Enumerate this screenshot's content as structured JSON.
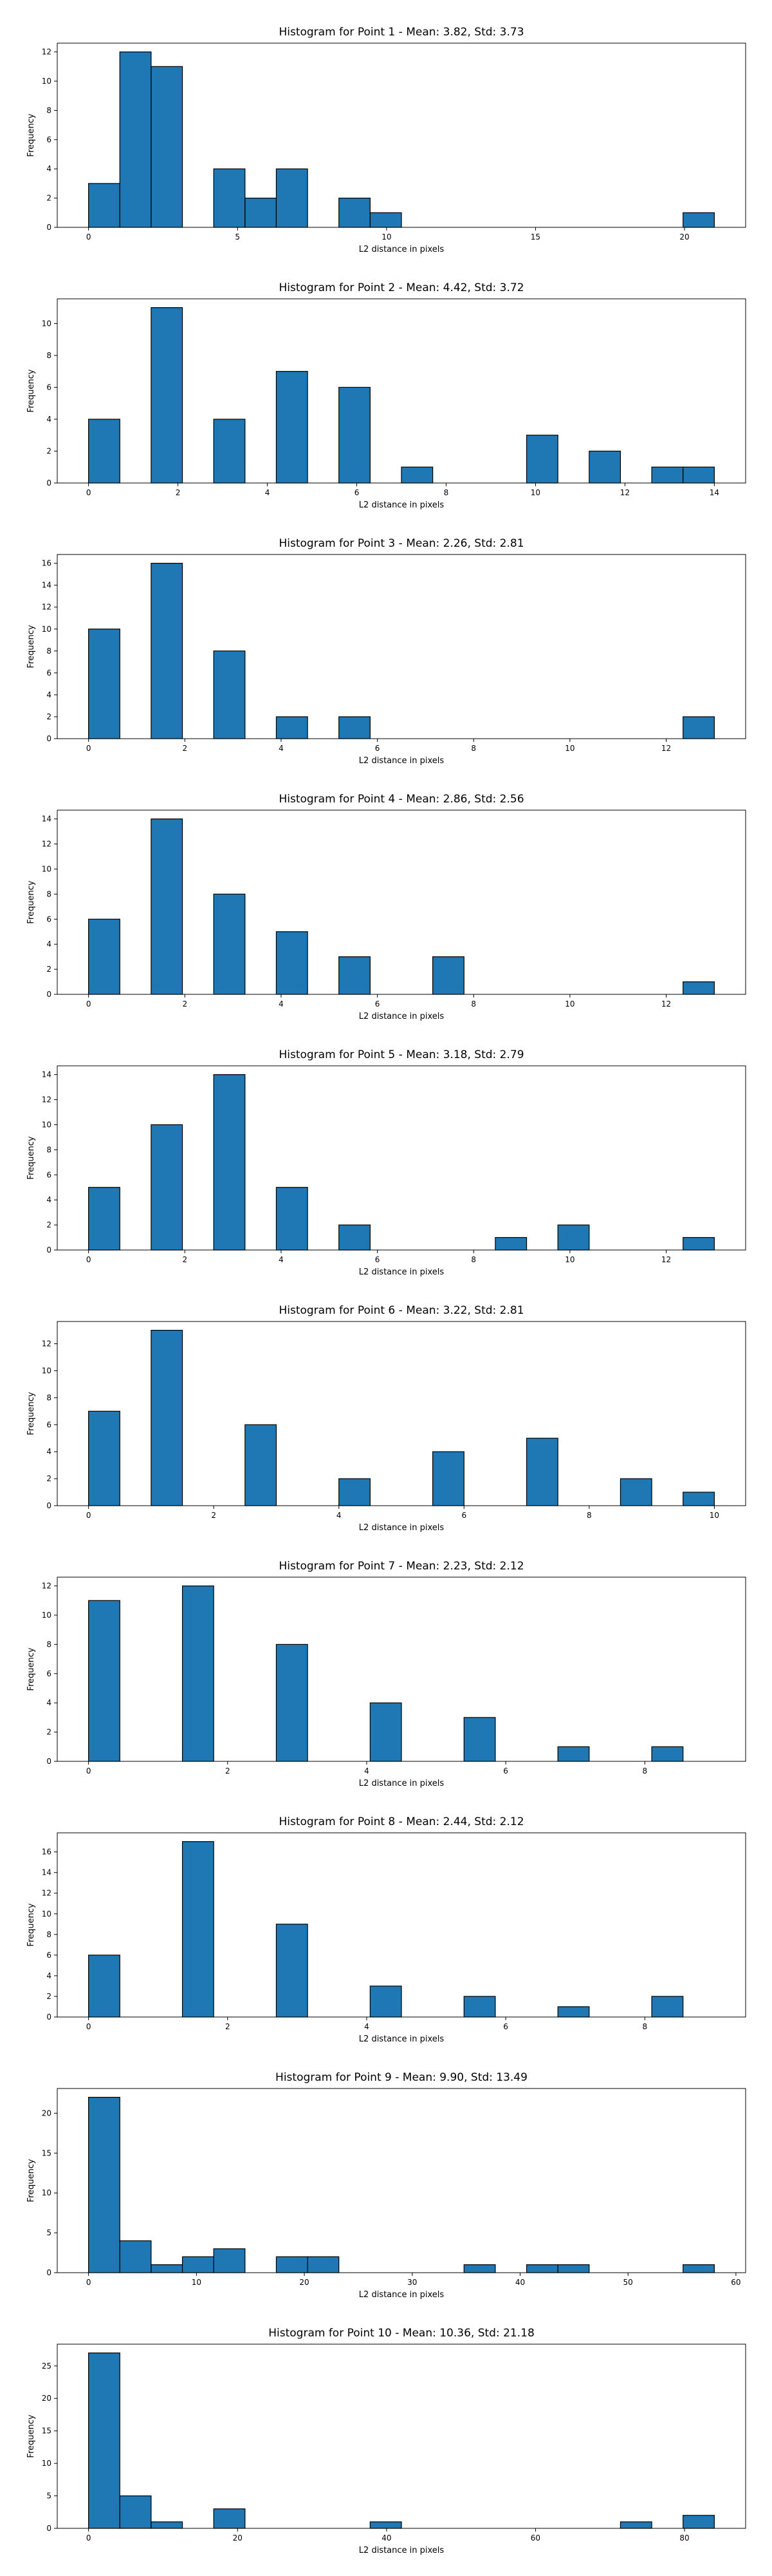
{
  "style": {
    "bar_color": "#1f77b4",
    "edge_color": "#000000"
  },
  "chart_data": [
    {
      "type": "bar",
      "title": "Histogram for Point 1 - Mean: 3.82, Std: 3.73",
      "xlabel": "L2 distance in pixels",
      "ylabel": "Frequency",
      "xlim": [
        -1.05,
        22.05
      ],
      "ylim": [
        0,
        12.6
      ],
      "xticks": [
        0,
        5,
        10,
        15,
        20
      ],
      "yticks": [
        0,
        2,
        4,
        6,
        8,
        10,
        12
      ],
      "bin_width": 1.05,
      "bins": [
        {
          "x0": 0.0,
          "count": 3
        },
        {
          "x0": 1.05,
          "count": 12
        },
        {
          "x0": 2.1,
          "count": 11
        },
        {
          "x0": 4.2,
          "count": 4
        },
        {
          "x0": 5.25,
          "count": 2
        },
        {
          "x0": 6.3,
          "count": 4
        },
        {
          "x0": 8.4,
          "count": 2
        },
        {
          "x0": 9.45,
          "count": 1
        },
        {
          "x0": 19.95,
          "count": 1
        }
      ]
    },
    {
      "type": "bar",
      "title": "Histogram for Point 2 - Mean: 4.42, Std: 3.72",
      "xlabel": "L2 distance in pixels",
      "ylabel": "Frequency",
      "xlim": [
        -0.7,
        14.7
      ],
      "ylim": [
        0,
        11.55
      ],
      "xticks": [
        0,
        2,
        4,
        6,
        8,
        10,
        12,
        14
      ],
      "yticks": [
        0,
        2,
        4,
        6,
        8,
        10
      ],
      "bin_width": 0.7,
      "bins": [
        {
          "x0": 0.0,
          "count": 4
        },
        {
          "x0": 1.4,
          "count": 11
        },
        {
          "x0": 2.8,
          "count": 4
        },
        {
          "x0": 4.2,
          "count": 7
        },
        {
          "x0": 5.6,
          "count": 6
        },
        {
          "x0": 7.0,
          "count": 1
        },
        {
          "x0": 9.8,
          "count": 3
        },
        {
          "x0": 11.2,
          "count": 2
        },
        {
          "x0": 12.6,
          "count": 1
        },
        {
          "x0": 13.3,
          "count": 1
        }
      ]
    },
    {
      "type": "bar",
      "title": "Histogram for Point 3 - Mean: 2.26, Std: 2.81",
      "xlabel": "L2 distance in pixels",
      "ylabel": "Frequency",
      "xlim": [
        -0.65,
        13.65
      ],
      "ylim": [
        0,
        16.8
      ],
      "xticks": [
        0,
        2,
        4,
        6,
        8,
        10,
        12
      ],
      "yticks": [
        0,
        2,
        4,
        6,
        8,
        10,
        12,
        14,
        16
      ],
      "bin_width": 0.65,
      "bins": [
        {
          "x0": 0.0,
          "count": 10
        },
        {
          "x0": 1.3,
          "count": 16
        },
        {
          "x0": 2.6,
          "count": 8
        },
        {
          "x0": 3.9,
          "count": 2
        },
        {
          "x0": 5.2,
          "count": 2
        },
        {
          "x0": 12.35,
          "count": 2
        }
      ]
    },
    {
      "type": "bar",
      "title": "Histogram for Point 4 - Mean: 2.86, Std: 2.56",
      "xlabel": "L2 distance in pixels",
      "ylabel": "Frequency",
      "xlim": [
        -0.65,
        13.65
      ],
      "ylim": [
        0,
        14.7
      ],
      "xticks": [
        0,
        2,
        4,
        6,
        8,
        10,
        12
      ],
      "yticks": [
        0,
        2,
        4,
        6,
        8,
        10,
        12,
        14
      ],
      "bin_width": 0.65,
      "bins": [
        {
          "x0": 0.0,
          "count": 6
        },
        {
          "x0": 1.3,
          "count": 14
        },
        {
          "x0": 2.6,
          "count": 8
        },
        {
          "x0": 3.9,
          "count": 5
        },
        {
          "x0": 5.2,
          "count": 3
        },
        {
          "x0": 7.15,
          "count": 3
        },
        {
          "x0": 12.35,
          "count": 1
        }
      ]
    },
    {
      "type": "bar",
      "title": "Histogram for Point 5 - Mean: 3.18, Std: 2.79",
      "xlabel": "L2 distance in pixels",
      "ylabel": "Frequency",
      "xlim": [
        -0.65,
        13.65
      ],
      "ylim": [
        0,
        14.7
      ],
      "xticks": [
        0,
        2,
        4,
        6,
        8,
        10,
        12
      ],
      "yticks": [
        0,
        2,
        4,
        6,
        8,
        10,
        12,
        14
      ],
      "bin_width": 0.65,
      "bins": [
        {
          "x0": 0.0,
          "count": 5
        },
        {
          "x0": 1.3,
          "count": 10
        },
        {
          "x0": 2.6,
          "count": 14
        },
        {
          "x0": 3.9,
          "count": 5
        },
        {
          "x0": 5.2,
          "count": 2
        },
        {
          "x0": 8.45,
          "count": 1
        },
        {
          "x0": 9.75,
          "count": 2
        },
        {
          "x0": 12.35,
          "count": 1
        }
      ]
    },
    {
      "type": "bar",
      "title": "Histogram for Point 6 - Mean: 3.22, Std: 2.81",
      "xlabel": "L2 distance in pixels",
      "ylabel": "Frequency",
      "xlim": [
        -0.5,
        10.5
      ],
      "ylim": [
        0,
        13.65
      ],
      "xticks": [
        0,
        2,
        4,
        6,
        8,
        10
      ],
      "yticks": [
        0,
        2,
        4,
        6,
        8,
        10,
        12
      ],
      "bin_width": 0.5,
      "bins": [
        {
          "x0": 0.0,
          "count": 7
        },
        {
          "x0": 1.0,
          "count": 13
        },
        {
          "x0": 2.5,
          "count": 6
        },
        {
          "x0": 4.0,
          "count": 2
        },
        {
          "x0": 5.5,
          "count": 4
        },
        {
          "x0": 7.0,
          "count": 5
        },
        {
          "x0": 8.5,
          "count": 2
        },
        {
          "x0": 9.5,
          "count": 1
        }
      ]
    },
    {
      "type": "bar",
      "title": "Histogram for Point 7 - Mean: 2.23, Std: 2.12",
      "xlabel": "L2 distance in pixels",
      "ylabel": "Frequency",
      "xlim": [
        -0.45,
        9.45
      ],
      "ylim": [
        0,
        12.6
      ],
      "xticks": [
        0,
        2,
        4,
        6,
        8
      ],
      "yticks": [
        0,
        2,
        4,
        6,
        8,
        10,
        12
      ],
      "bin_width": 0.45,
      "bins": [
        {
          "x0": 0.0,
          "count": 11
        },
        {
          "x0": 1.35,
          "count": 12
        },
        {
          "x0": 2.7,
          "count": 8
        },
        {
          "x0": 4.05,
          "count": 4
        },
        {
          "x0": 5.4,
          "count": 3
        },
        {
          "x0": 6.75,
          "count": 1
        },
        {
          "x0": 8.1,
          "count": 1
        }
      ]
    },
    {
      "type": "bar",
      "title": "Histogram for Point 8 - Mean: 2.44, Std: 2.12",
      "xlabel": "L2 distance in pixels",
      "ylabel": "Frequency",
      "xlim": [
        -0.45,
        9.45
      ],
      "ylim": [
        0,
        17.85
      ],
      "xticks": [
        0,
        2,
        4,
        6,
        8
      ],
      "yticks": [
        0,
        2,
        4,
        6,
        8,
        10,
        12,
        14,
        16
      ],
      "bin_width": 0.45,
      "bins": [
        {
          "x0": 0.0,
          "count": 6
        },
        {
          "x0": 1.35,
          "count": 17
        },
        {
          "x0": 2.7,
          "count": 9
        },
        {
          "x0": 4.05,
          "count": 3
        },
        {
          "x0": 5.4,
          "count": 2
        },
        {
          "x0": 6.75,
          "count": 1
        },
        {
          "x0": 8.1,
          "count": 2
        }
      ]
    },
    {
      "type": "bar",
      "title": "Histogram for Point 9 - Mean: 9.90, Std: 13.49",
      "xlabel": "L2 distance in pixels",
      "ylabel": "Frequency",
      "xlim": [
        -2.9,
        60.9
      ],
      "ylim": [
        0,
        23.1
      ],
      "xticks": [
        0,
        10,
        20,
        30,
        40,
        50,
        60
      ],
      "yticks": [
        0,
        5,
        10,
        15,
        20
      ],
      "bin_width": 2.9,
      "bins": [
        {
          "x0": 0.0,
          "count": 22
        },
        {
          "x0": 2.9,
          "count": 4
        },
        {
          "x0": 5.8,
          "count": 1
        },
        {
          "x0": 8.7,
          "count": 2
        },
        {
          "x0": 11.6,
          "count": 3
        },
        {
          "x0": 17.4,
          "count": 2
        },
        {
          "x0": 20.3,
          "count": 2
        },
        {
          "x0": 34.8,
          "count": 1
        },
        {
          "x0": 40.6,
          "count": 1
        },
        {
          "x0": 43.5,
          "count": 1
        },
        {
          "x0": 55.1,
          "count": 1
        }
      ]
    },
    {
      "type": "bar",
      "title": "Histogram for Point 10 - Mean: 10.36, Std: 21.18",
      "xlabel": "L2 distance in pixels",
      "ylabel": "Frequency",
      "xlim": [
        -4.2,
        88.2
      ],
      "ylim": [
        0,
        28.35
      ],
      "xticks": [
        0,
        20,
        40,
        60,
        80
      ],
      "yticks": [
        0,
        5,
        10,
        15,
        20,
        25
      ],
      "bin_width": 4.2,
      "bins": [
        {
          "x0": 0.0,
          "count": 27
        },
        {
          "x0": 4.2,
          "count": 5
        },
        {
          "x0": 8.4,
          "count": 1
        },
        {
          "x0": 16.8,
          "count": 3
        },
        {
          "x0": 37.8,
          "count": 1
        },
        {
          "x0": 71.4,
          "count": 1
        },
        {
          "x0": 79.8,
          "count": 2
        }
      ]
    }
  ]
}
